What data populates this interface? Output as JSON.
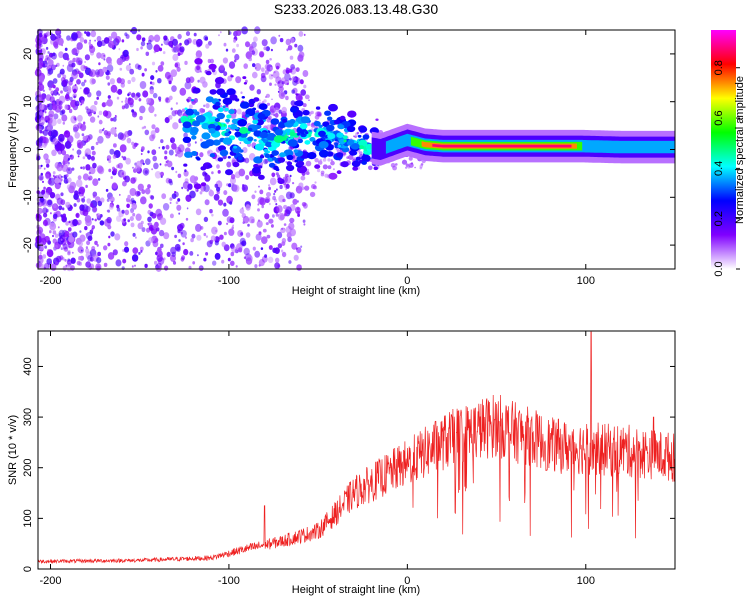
{
  "title": "S233.2026.083.13.48.G30",
  "chart_data": [
    {
      "type": "heatmap",
      "title": "S233.2026.083.13.48.G30",
      "xlabel": "Height of straight line (km)",
      "ylabel": "Frequency (Hz)",
      "xlim": [
        -207,
        150
      ],
      "ylim": [
        -25,
        25
      ],
      "xticks": [
        -200,
        -100,
        0,
        100
      ],
      "yticks": [
        -20,
        -10,
        0,
        10,
        20
      ],
      "ridge": [
        {
          "x": -100,
          "y": 5
        },
        {
          "x": -75,
          "y": 2
        },
        {
          "x": -50,
          "y": 4
        },
        {
          "x": -30,
          "y": 1
        },
        {
          "x": -15,
          "y": 0
        },
        {
          "x": 0,
          "y": 2
        },
        {
          "x": 10,
          "y": 1
        },
        {
          "x": 20,
          "y": 0.7
        },
        {
          "x": 60,
          "y": 0.7
        },
        {
          "x": 98,
          "y": 0.7
        },
        {
          "x": 120,
          "y": 0.5
        },
        {
          "x": 150,
          "y": 0.5
        }
      ],
      "colorbar": {
        "label": "Normalized spectral amplitude",
        "range": [
          0,
          0.95
        ],
        "ticks": [
          "0.0",
          "0.2",
          "0.4",
          "0.6",
          "0.8"
        ],
        "tick_values": [
          0,
          0.2,
          0.4,
          0.6,
          0.8
        ],
        "colors": [
          "#ffffff",
          "#8000ff",
          "#0000ff",
          "#00ffff",
          "#00ff00",
          "#ffff00",
          "#ff0000",
          "#ff00ff"
        ]
      }
    },
    {
      "type": "line",
      "xlabel": "Height of straight line (km)",
      "ylabel": "SNR (10 * v/v)",
      "xlim": [
        -207,
        150
      ],
      "ylim": [
        0,
        470
      ],
      "xticks": [
        -200,
        -100,
        0,
        100
      ],
      "yticks": [
        0,
        100,
        200,
        300,
        400
      ],
      "color": "#ee2020",
      "trend": {
        "x": [
          -207,
          -150,
          -110,
          -90,
          -70,
          -50,
          -40,
          -30,
          -20,
          -10,
          0,
          10,
          20,
          30,
          40,
          50,
          60,
          70,
          80,
          90,
          100,
          110,
          120,
          130,
          140,
          150
        ],
        "y": [
          15,
          17,
          22,
          40,
          55,
          75,
          110,
          150,
          170,
          190,
          210,
          230,
          250,
          265,
          275,
          285,
          270,
          260,
          245,
          240,
          240,
          235,
          235,
          230,
          225,
          220
        ]
      },
      "spikes": [
        {
          "x": -80,
          "y": 125
        },
        {
          "x": 103,
          "y": 468
        },
        {
          "x": 138,
          "y": 300
        },
        {
          "x": 145,
          "y": 260
        }
      ]
    }
  ]
}
